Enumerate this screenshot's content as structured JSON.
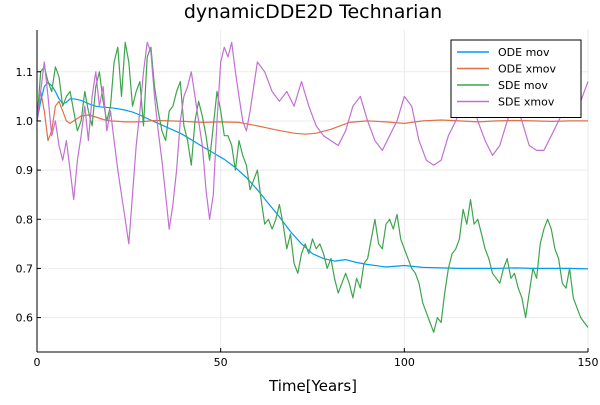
{
  "chart_data": {
    "type": "line",
    "title": "dynamicDDE2D Technarian",
    "xlabel": "Time[Years]",
    "ylabel": "",
    "xlim": [
      0,
      150
    ],
    "ylim": [
      0.53,
      1.185
    ],
    "xticks": [
      0,
      50,
      100,
      150
    ],
    "yticks": [
      0.6,
      0.7,
      0.8,
      0.9,
      1.0,
      1.1
    ],
    "xtick_labels": [
      "0",
      "50",
      "100",
      "150"
    ],
    "ytick_labels": [
      "0.6",
      "0.7",
      "0.8",
      "0.9",
      "1.0",
      "1.1"
    ],
    "grid": true,
    "legend_position": "top-right",
    "series": [
      {
        "name": "ODE mov",
        "color": "#009af9",
        "x": [
          0,
          1,
          2,
          3,
          4,
          5,
          6,
          7,
          8,
          9,
          10,
          12,
          14,
          16,
          18,
          20,
          22,
          24,
          26,
          28,
          30,
          33,
          36,
          39,
          42,
          45,
          48,
          51,
          54,
          57,
          60,
          63,
          66,
          69,
          72,
          75,
          78,
          81,
          84,
          87,
          90,
          95,
          100,
          105,
          110,
          115,
          120,
          125,
          130,
          135,
          140,
          145,
          150
        ],
        "y": [
          1.0,
          1.04,
          1.07,
          1.078,
          1.072,
          1.06,
          1.045,
          1.035,
          1.038,
          1.045,
          1.045,
          1.042,
          1.035,
          1.03,
          1.028,
          1.027,
          1.025,
          1.022,
          1.018,
          1.012,
          1.005,
          0.995,
          0.985,
          0.975,
          0.962,
          0.948,
          0.935,
          0.922,
          0.905,
          0.885,
          0.86,
          0.832,
          0.805,
          0.775,
          0.75,
          0.73,
          0.72,
          0.715,
          0.718,
          0.712,
          0.708,
          0.703,
          0.706,
          0.702,
          0.701,
          0.7,
          0.7,
          0.7,
          0.701,
          0.7,
          0.7,
          0.7,
          0.699
        ]
      },
      {
        "name": "ODE xmov",
        "color": "#e26f46",
        "x": [
          0,
          1,
          2,
          3,
          4,
          5,
          6,
          7,
          8,
          9,
          10,
          12,
          14,
          16,
          18,
          20,
          24,
          28,
          32,
          36,
          40,
          45,
          50,
          55,
          60,
          65,
          70,
          73,
          76,
          80,
          85,
          90,
          95,
          100,
          105,
          110,
          115,
          120,
          125,
          130,
          135,
          140,
          145,
          150
        ],
        "y": [
          1.0,
          1.06,
          1.02,
          0.96,
          0.98,
          1.03,
          1.04,
          1.02,
          1.0,
          0.995,
          1.0,
          1.01,
          1.012,
          1.008,
          1.003,
          1.0,
          0.998,
          0.998,
          1.001,
          1.0,
          0.999,
          0.997,
          0.998,
          0.997,
          0.99,
          0.982,
          0.975,
          0.973,
          0.975,
          0.983,
          0.997,
          1.0,
          0.998,
          0.995,
          1.0,
          1.002,
          1.0,
          0.998,
          1.0,
          1.001,
          1.0,
          0.999,
          1.0,
          1.0
        ]
      },
      {
        "name": "SDE mov",
        "color": "#3da44d",
        "x": [
          0,
          1,
          2,
          3,
          4,
          5,
          6,
          7,
          8,
          9,
          10,
          11,
          12,
          13,
          14,
          15,
          16,
          17,
          18,
          19,
          20,
          21,
          22,
          23,
          24,
          25,
          26,
          27,
          28,
          29,
          30,
          31,
          32,
          33,
          34,
          35,
          36,
          37,
          38,
          39,
          40,
          41,
          42,
          43,
          44,
          45,
          46,
          47,
          48,
          49,
          50,
          51,
          52,
          53,
          54,
          55,
          56,
          57,
          58,
          59,
          60,
          61,
          62,
          63,
          64,
          65,
          66,
          67,
          68,
          69,
          70,
          71,
          72,
          73,
          74,
          75,
          76,
          77,
          78,
          79,
          80,
          81,
          82,
          83,
          84,
          85,
          86,
          87,
          88,
          89,
          90,
          91,
          92,
          93,
          94,
          95,
          96,
          97,
          98,
          99,
          100,
          101,
          102,
          103,
          104,
          105,
          106,
          107,
          108,
          109,
          110,
          111,
          112,
          113,
          114,
          115,
          116,
          117,
          118,
          119,
          120,
          121,
          122,
          123,
          124,
          125,
          126,
          127,
          128,
          129,
          130,
          131,
          132,
          133,
          134,
          135,
          136,
          137,
          138,
          139,
          140,
          141,
          142,
          143,
          144,
          145,
          146,
          147,
          148,
          149,
          150
        ],
        "y": [
          1.0,
          1.1,
          1.11,
          1.08,
          1.06,
          1.11,
          1.09,
          1.03,
          1.05,
          1.06,
          1.02,
          0.98,
          1.0,
          1.06,
          1.02,
          0.99,
          1.07,
          1.1,
          1.04,
          1.0,
          1.03,
          1.12,
          1.15,
          1.05,
          1.16,
          1.12,
          1.03,
          1.06,
          1.08,
          0.99,
          1.13,
          1.15,
          1.07,
          1.02,
          0.98,
          0.96,
          1.02,
          1.03,
          1.06,
          1.08,
          0.99,
          0.96,
          0.91,
          1.0,
          1.04,
          1.01,
          0.97,
          0.92,
          0.99,
          1.06,
          1.02,
          0.97,
          0.97,
          0.95,
          0.9,
          0.96,
          0.93,
          0.91,
          0.86,
          0.88,
          0.9,
          0.84,
          0.79,
          0.8,
          0.78,
          0.8,
          0.83,
          0.79,
          0.74,
          0.77,
          0.71,
          0.69,
          0.73,
          0.75,
          0.73,
          0.76,
          0.74,
          0.75,
          0.73,
          0.7,
          0.72,
          0.68,
          0.65,
          0.67,
          0.69,
          0.67,
          0.64,
          0.68,
          0.66,
          0.71,
          0.72,
          0.76,
          0.8,
          0.75,
          0.74,
          0.79,
          0.8,
          0.78,
          0.81,
          0.76,
          0.74,
          0.72,
          0.7,
          0.69,
          0.67,
          0.63,
          0.61,
          0.59,
          0.57,
          0.6,
          0.59,
          0.65,
          0.7,
          0.73,
          0.74,
          0.76,
          0.82,
          0.79,
          0.84,
          0.79,
          0.8,
          0.77,
          0.74,
          0.72,
          0.69,
          0.68,
          0.67,
          0.7,
          0.72,
          0.68,
          0.69,
          0.66,
          0.64,
          0.6,
          0.65,
          0.7,
          0.68,
          0.75,
          0.78,
          0.8,
          0.78,
          0.74,
          0.72,
          0.67,
          0.66,
          0.7,
          0.64,
          0.62,
          0.6,
          0.59,
          0.58
        ]
      },
      {
        "name": "SDE xmov",
        "color": "#c271d2",
        "x": [
          0,
          2,
          3,
          4,
          5,
          6,
          7,
          8,
          9,
          10,
          11,
          12,
          13,
          14,
          15,
          16,
          17,
          18,
          19,
          20,
          21,
          22,
          23,
          24,
          25,
          26,
          27,
          28,
          29,
          30,
          31,
          32,
          33,
          34,
          35,
          36,
          37,
          38,
          39,
          40,
          41,
          42,
          43,
          44,
          45,
          46,
          47,
          48,
          49,
          50,
          51,
          52,
          53,
          54,
          55,
          56,
          57,
          58,
          59,
          60,
          62,
          64,
          66,
          68,
          70,
          72,
          74,
          76,
          78,
          80,
          82,
          84,
          86,
          88,
          90,
          92,
          94,
          96,
          98,
          100,
          102,
          104,
          106,
          108,
          110,
          112,
          114,
          116,
          118,
          120,
          122,
          124,
          126,
          128,
          130,
          132,
          134,
          136,
          138,
          140,
          142,
          144,
          146,
          148,
          150
        ],
        "y": [
          1.0,
          1.12,
          1.05,
          0.97,
          1.0,
          0.95,
          0.92,
          0.96,
          0.9,
          0.84,
          0.92,
          0.97,
          1.03,
          0.96,
          1.05,
          1.1,
          1.03,
          1.07,
          0.98,
          1.02,
          0.96,
          0.9,
          0.85,
          0.8,
          0.75,
          0.85,
          0.95,
          1.02,
          1.1,
          1.16,
          1.14,
          1.05,
          0.98,
          0.92,
          0.85,
          0.78,
          0.83,
          0.9,
          1.0,
          1.05,
          1.07,
          1.1,
          1.05,
          1.0,
          0.95,
          0.86,
          0.8,
          0.85,
          1.0,
          1.12,
          1.15,
          1.13,
          1.16,
          1.1,
          1.05,
          1.0,
          0.98,
          1.02,
          1.07,
          1.12,
          1.1,
          1.06,
          1.04,
          1.06,
          1.03,
          1.08,
          1.03,
          0.99,
          0.97,
          0.96,
          0.95,
          0.98,
          1.03,
          1.05,
          1.0,
          0.96,
          0.94,
          0.97,
          1.0,
          1.05,
          1.03,
          0.96,
          0.92,
          0.91,
          0.92,
          0.97,
          1.0,
          1.04,
          1.05,
          1.0,
          0.96,
          0.93,
          0.95,
          1.0,
          1.04,
          1.0,
          0.95,
          0.94,
          0.94,
          0.97,
          1.0,
          1.03,
          1.01,
          1.04,
          1.08
        ]
      }
    ]
  }
}
